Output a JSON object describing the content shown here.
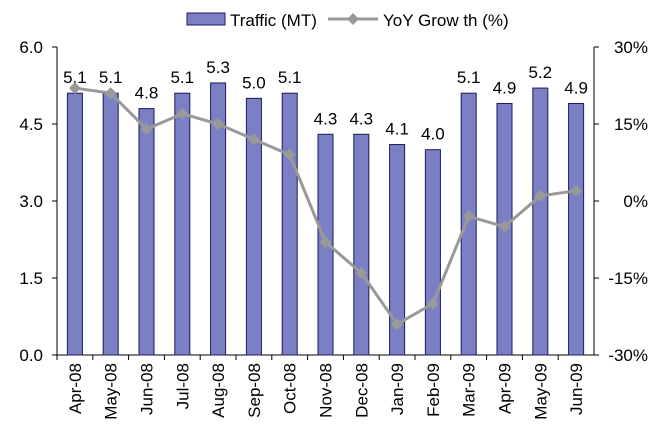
{
  "chart_data": {
    "type": "bar+line",
    "categories": [
      "Apr-08",
      "May-08",
      "Jun-08",
      "Jul-08",
      "Aug-08",
      "Sep-08",
      "Oct-08",
      "Nov-08",
      "Dec-08",
      "Jan-09",
      "Feb-09",
      "Mar-09",
      "Apr-09",
      "May-09",
      "Jun-09"
    ],
    "series": [
      {
        "name": "Traffic (MT)",
        "type": "bar",
        "color": "#7b7fc4",
        "stroke": "#1c1c5e",
        "values": [
          5.1,
          5.1,
          4.8,
          5.1,
          5.3,
          5.0,
          5.1,
          4.3,
          4.3,
          4.1,
          4.0,
          5.1,
          4.9,
          5.2,
          4.9
        ],
        "value_labels": [
          "5.1",
          "5.1",
          "4.8",
          "5.1",
          "5.3",
          "5.0",
          "5.1",
          "4.3",
          "4.3",
          "4.1",
          "4.0",
          "5.1",
          "4.9",
          "5.2",
          "4.9"
        ]
      },
      {
        "name": "YoY Grow th (%)",
        "type": "line",
        "axis": "y2",
        "color": "#999999",
        "values": [
          22,
          21,
          14,
          17,
          15,
          12,
          9,
          -8,
          -14,
          -24,
          -20,
          -3,
          -5,
          1,
          2
        ]
      }
    ],
    "ylim": [
      0,
      6
    ],
    "yticks": [
      {
        "value": 0,
        "label": "0.0"
      },
      {
        "value": 1.5,
        "label": "1.5"
      },
      {
        "value": 3,
        "label": "3.0"
      },
      {
        "value": 4.5,
        "label": "4.5"
      },
      {
        "value": 6,
        "label": "6.0"
      }
    ],
    "y2lim": [
      -30,
      30
    ],
    "y2ticks": [
      {
        "value": -30,
        "label": "-30%"
      },
      {
        "value": -15,
        "label": "-15%"
      },
      {
        "value": 0,
        "label": "0%"
      },
      {
        "value": 15,
        "label": "15%"
      },
      {
        "value": 30,
        "label": "30%"
      }
    ],
    "legend": "top"
  }
}
